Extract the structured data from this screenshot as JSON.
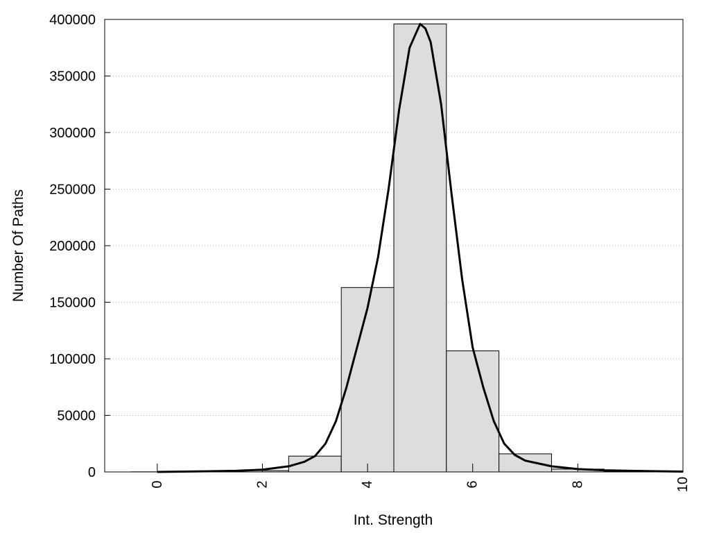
{
  "chart_data": {
    "type": "bar",
    "title": "",
    "xlabel": "Int. Strength",
    "ylabel": "Number Of Paths",
    "xlim": [
      -1,
      10
    ],
    "ylim": [
      0,
      400000
    ],
    "x_ticks": [
      0,
      2,
      4,
      6,
      8,
      10
    ],
    "y_ticks": [
      0,
      50000,
      100000,
      150000,
      200000,
      250000,
      300000,
      350000,
      400000
    ],
    "grid": true,
    "legend": "none",
    "bar_fill": "#dddddd",
    "line_color": "#000000",
    "bars": {
      "bin_width": 1,
      "centers": [
        0,
        1,
        2,
        3,
        4,
        5,
        6,
        7,
        8,
        9
      ],
      "values": [
        100,
        300,
        1200,
        14000,
        163000,
        396000,
        107000,
        16000,
        2500,
        500
      ]
    },
    "curve": {
      "x": [
        0,
        0.5,
        1,
        1.5,
        2,
        2.5,
        2.8,
        3,
        3.2,
        3.4,
        3.6,
        3.8,
        4,
        4.2,
        4.4,
        4.6,
        4.8,
        5,
        5.1,
        5.2,
        5.4,
        5.6,
        5.8,
        6,
        6.2,
        6.4,
        6.6,
        6.8,
        7,
        7.5,
        8,
        8.5,
        9,
        9.5,
        10
      ],
      "y": [
        0,
        300,
        600,
        1000,
        2000,
        5000,
        9000,
        14000,
        25000,
        45000,
        75000,
        110000,
        145000,
        190000,
        250000,
        320000,
        375000,
        396000,
        392000,
        380000,
        325000,
        245000,
        170000,
        110000,
        75000,
        45000,
        25000,
        15000,
        10000,
        5000,
        2500,
        1500,
        1000,
        600,
        300
      ]
    }
  }
}
